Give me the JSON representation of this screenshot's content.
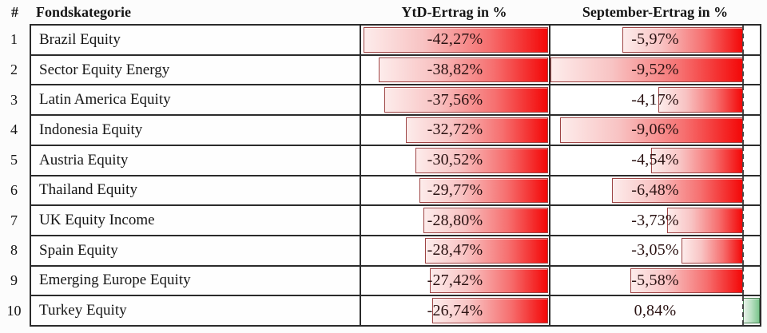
{
  "header": {
    "rank": "#",
    "category": "Fondskategorie",
    "ytd": "YtD-Ertrag in %",
    "september": "September-Ertrag in %"
  },
  "rows": [
    {
      "rank": "1",
      "category": "Brazil Equity",
      "ytd_label": "-42,27%",
      "ytd_value": -42.27,
      "sep_label": "-5,97%",
      "sep_value": -5.97
    },
    {
      "rank": "2",
      "category": "Sector Equity Energy",
      "ytd_label": "-38,82%",
      "ytd_value": -38.82,
      "sep_label": "-9,52%",
      "sep_value": -9.52
    },
    {
      "rank": "3",
      "category": "Latin America Equity",
      "ytd_label": "-37,56%",
      "ytd_value": -37.56,
      "sep_label": "-4,17%",
      "sep_value": -4.17
    },
    {
      "rank": "4",
      "category": "Indonesia Equity",
      "ytd_label": "-32,72%",
      "ytd_value": -32.72,
      "sep_label": "-9,06%",
      "sep_value": -9.06
    },
    {
      "rank": "5",
      "category": "Austria Equity",
      "ytd_label": "-30,52%",
      "ytd_value": -30.52,
      "sep_label": "-4,54%",
      "sep_value": -4.54
    },
    {
      "rank": "6",
      "category": "Thailand Equity",
      "ytd_label": "-29,77%",
      "ytd_value": -29.77,
      "sep_label": "-6,48%",
      "sep_value": -6.48
    },
    {
      "rank": "7",
      "category": "UK Equity Income",
      "ytd_label": "-28,80%",
      "ytd_value": -28.8,
      "sep_label": "-3,73%",
      "sep_value": -3.73
    },
    {
      "rank": "8",
      "category": "Spain Equity",
      "ytd_label": "-28,47%",
      "ytd_value": -28.47,
      "sep_label": "-3,05%",
      "sep_value": -3.05
    },
    {
      "rank": "9",
      "category": "Emerging Europe Equity",
      "ytd_label": "-27,42%",
      "ytd_value": -27.42,
      "sep_label": "-5,58%",
      "sep_value": -5.58
    },
    {
      "rank": "10",
      "category": "Turkey Equity",
      "ytd_label": "-26,74%",
      "ytd_value": -26.74,
      "sep_label": "0,84%",
      "sep_value": 0.84
    }
  ],
  "colors": {
    "negative_bar_light": "#fdeceb",
    "negative_bar_strong": "#f30808",
    "negative_bar_border": "#9e4545",
    "positive_bar_light": "#e7f2e9",
    "positive_bar_strong": "#7dc68e",
    "positive_bar_border": "#477f52",
    "grid_line": "#2b2b2b",
    "text": "#161616",
    "value_text": "#2b1313"
  },
  "chart_data": {
    "type": "table",
    "title": "",
    "columns": [
      "#",
      "Fondskategorie",
      "YtD-Ertrag in %",
      "September-Ertrag in %"
    ],
    "categories": [
      "Brazil Equity",
      "Sector Equity Energy",
      "Latin America Equity",
      "Indonesia Equity",
      "Austria Equity",
      "Thailand Equity",
      "UK Equity Income",
      "Spain Equity",
      "Emerging Europe Equity",
      "Turkey Equity"
    ],
    "series": [
      {
        "name": "YtD-Ertrag in %",
        "values": [
          -42.27,
          -38.82,
          -37.56,
          -32.72,
          -30.52,
          -29.77,
          -28.8,
          -28.47,
          -27.42,
          -26.74
        ]
      },
      {
        "name": "September-Ertrag in %",
        "values": [
          -5.97,
          -9.52,
          -4.17,
          -9.06,
          -4.54,
          -6.48,
          -3.73,
          -3.05,
          -5.58,
          0.84
        ]
      }
    ],
    "value_format": "percent with comma decimal separator",
    "bar_style": "in-cell data bars; negative values drawn as red gradient bars anchored at a zero axis on the right (dashed in September column), positive values as green bars extending right of the axis; each column scaled to its own max magnitude",
    "ytd_range": [
      -42.27,
      0
    ],
    "september_range": [
      -9.52,
      0.84
    ],
    "legend_position": "none",
    "grid": true
  }
}
